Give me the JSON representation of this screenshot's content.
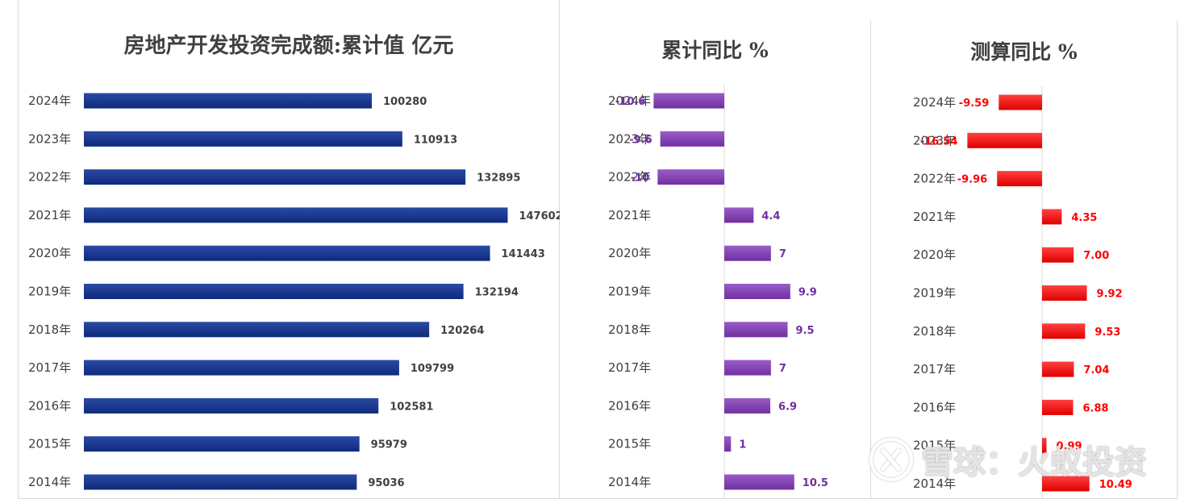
{
  "chart_data": [
    {
      "type": "bar",
      "orientation": "horizontal",
      "title": "房地产开发投资完成额:累计值 亿元",
      "categories": [
        "2024年",
        "2023年",
        "2022年",
        "2021年",
        "2020年",
        "2019年",
        "2018年",
        "2017年",
        "2016年",
        "2015年",
        "2014年"
      ],
      "values": [
        100280,
        110913,
        132895,
        147602,
        141443,
        132194,
        120264,
        109799,
        102581,
        95979,
        95036
      ],
      "labels": [
        "100280",
        "110913",
        "132895",
        "147602",
        "141443",
        "132194",
        "120264",
        "109799",
        "102581",
        "95979",
        "95036"
      ],
      "xlim": [
        0,
        150000
      ],
      "color": "#0e2a7a",
      "label_color": "#404040"
    },
    {
      "type": "bar",
      "orientation": "horizontal",
      "title": "累计同比 %",
      "categories": [
        "2024年",
        "2023年",
        "2022年",
        "2021年",
        "2020年",
        "2019年",
        "2018年",
        "2017年",
        "2016年",
        "2015年",
        "2014年"
      ],
      "values": [
        -10.6,
        -9.6,
        -10,
        4.4,
        7,
        9.9,
        9.5,
        7,
        6.9,
        1,
        10.5
      ],
      "labels": [
        "-10.6",
        "-9.6",
        "-10",
        "4.4",
        "7",
        "9.9",
        "9.5",
        "7",
        "6.9",
        "1",
        "10.5"
      ],
      "xlim": [
        -15,
        15
      ],
      "color": "#7030a0",
      "label_color": "#7030a0"
    },
    {
      "type": "bar",
      "orientation": "horizontal",
      "title": "测算同比 %",
      "categories": [
        "2024年",
        "2023年",
        "2022年",
        "2021年",
        "2020年",
        "2019年",
        "2018年",
        "2017年",
        "2016年",
        "2015年",
        "2014年"
      ],
      "values": [
        -9.59,
        -16.54,
        -9.96,
        4.35,
        7.0,
        9.92,
        9.53,
        7.04,
        6.88,
        0.99,
        10.49
      ],
      "labels": [
        "-9.59",
        "-16.54",
        "-9.96",
        "4.35",
        "7.00",
        "9.92",
        "9.53",
        "7.04",
        "6.88",
        "0.99",
        "10.49"
      ],
      "xlim": [
        -25,
        25
      ],
      "color": "#e00000",
      "label_color": "#ff0000"
    }
  ],
  "watermark": "雪球：火蚁投资"
}
